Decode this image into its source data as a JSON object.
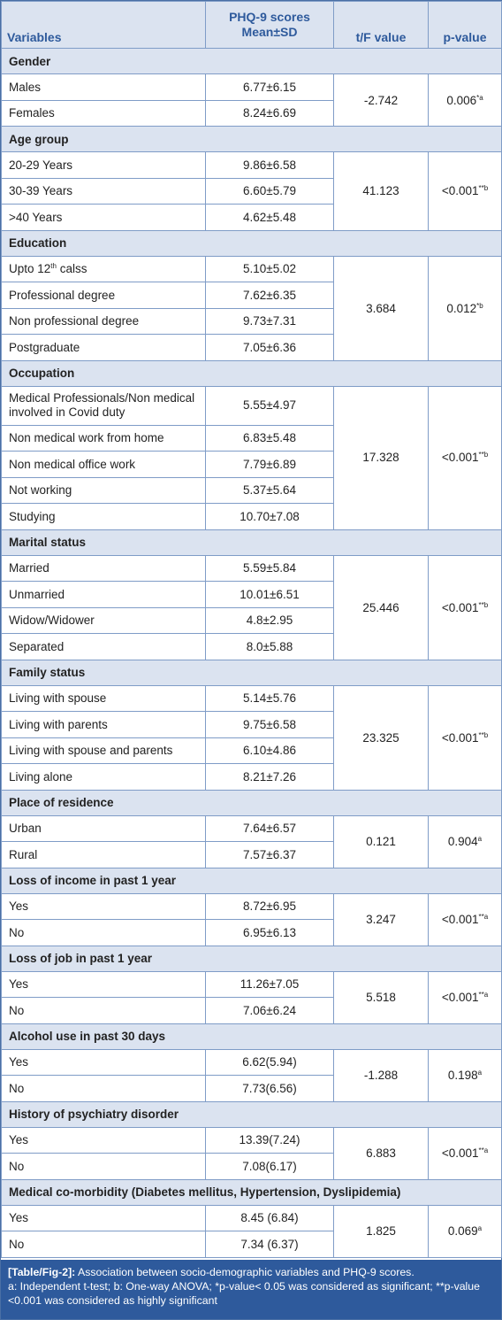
{
  "header": {
    "variables": "Variables",
    "scores_line1": "PHQ-9 scores",
    "scores_line2": "Mean±SD",
    "tf": "t/F value",
    "p": "p-value"
  },
  "groups": [
    {
      "label": "Gender",
      "tf": "-2.742",
      "p": "0.006",
      "p_sup": "*a",
      "rows": [
        [
          "Males",
          "6.77±6.15"
        ],
        [
          "Females",
          "8.24±6.69"
        ]
      ]
    },
    {
      "label": "Age group",
      "tf": "41.123",
      "p": "<0.001",
      "p_sup": "**b",
      "rows": [
        [
          "20-29 Years",
          "9.86±6.58"
        ],
        [
          "30-39 Years",
          "6.60±5.79"
        ],
        [
          ">40 Years",
          "4.62±5.48"
        ]
      ]
    },
    {
      "label": "Education",
      "tf": "3.684",
      "p": "0.012",
      "p_sup": "*b",
      "rows": [
        [
          "Upto 12",
          "5.10±5.02"
        ],
        [
          "Professional degree",
          "7.62±6.35"
        ],
        [
          "Non professional degree",
          "9.73±7.31"
        ],
        [
          "Postgraduate",
          "7.05±6.36"
        ]
      ]
    },
    {
      "label": "Occupation",
      "tf": "17.328",
      "p": "<0.001",
      "p_sup": "**b",
      "rows": [
        [
          "Medical Professionals/Non medical involved in Covid duty",
          "5.55±4.97"
        ],
        [
          "Non medical work from home",
          "6.83±5.48"
        ],
        [
          "Non medical office work",
          "7.79±6.89"
        ],
        [
          "Not working",
          "5.37±5.64"
        ],
        [
          "Studying",
          "10.70±7.08"
        ]
      ]
    },
    {
      "label": "Marital status",
      "tf": "25.446",
      "p": "<0.001",
      "p_sup": "**b",
      "rows": [
        [
          "Married",
          "5.59±5.84"
        ],
        [
          "Unmarried",
          "10.01±6.51"
        ],
        [
          "Widow/Widower",
          "4.8±2.95"
        ],
        [
          "Separated",
          "8.0±5.88"
        ]
      ]
    },
    {
      "label": "Family status",
      "tf": "23.325",
      "p": "<0.001",
      "p_sup": "**b",
      "rows": [
        [
          "Living with spouse",
          "5.14±5.76"
        ],
        [
          "Living with parents",
          "9.75±6.58"
        ],
        [
          "Living with spouse and parents",
          "6.10±4.86"
        ],
        [
          "Living alone",
          "8.21±7.26"
        ]
      ]
    },
    {
      "label": "Place of residence",
      "tf": "0.121",
      "p": "0.904",
      "p_sup": "a",
      "rows": [
        [
          "Urban",
          "7.64±6.57"
        ],
        [
          "Rural",
          "7.57±6.37"
        ]
      ]
    },
    {
      "label": "Loss of income in past 1 year",
      "tf": "3.247",
      "p": "<0.001",
      "p_sup": "**a",
      "rows": [
        [
          "Yes",
          "8.72±6.95"
        ],
        [
          "No",
          "6.95±6.13"
        ]
      ]
    },
    {
      "label": "Loss of job in past 1 year",
      "tf": "5.518",
      "p": "<0.001",
      "p_sup": "**a",
      "rows": [
        [
          "Yes",
          "11.26±7.05"
        ],
        [
          "No",
          "7.06±6.24"
        ]
      ]
    },
    {
      "label": "Alcohol use in past 30 days",
      "tf": "-1.288",
      "p": "0.198",
      "p_sup": "a",
      "rows": [
        [
          "Yes",
          "6.62(5.94)"
        ],
        [
          "No",
          "7.73(6.56)"
        ]
      ]
    },
    {
      "label": "History of psychiatry disorder",
      "tf": "6.883",
      "p": "<0.001",
      "p_sup": "**a",
      "rows": [
        [
          "Yes",
          "13.39(7.24)"
        ],
        [
          "No",
          "7.08(6.17)"
        ]
      ]
    },
    {
      "label": "Medical co-morbidity (Diabetes mellitus, Hypertension, Dyslipidemia)",
      "tf": "1.825",
      "p": "0.069",
      "p_sup": "a",
      "rows": [
        [
          "Yes",
          "8.45 (6.84)"
        ],
        [
          "No",
          "7.34 (6.37)"
        ]
      ]
    }
  ],
  "education_sup": {
    "sup": "th",
    "suffix": " calss"
  },
  "caption": {
    "title": "[Table/Fig-2]:",
    "text": "Association between socio-demographic variables and PHQ-9 scores.",
    "notes": "a: Independent t-test; b: One-way ANOVA; *p-value< 0.05 was considered as significant; **p-value <0.001 was considered as highly significant"
  },
  "colors": {
    "header_bg": "#dbe3f0",
    "header_text": "#2e5a9c",
    "border": "#7f9cc7",
    "caption_bg": "#2e5a9c"
  }
}
